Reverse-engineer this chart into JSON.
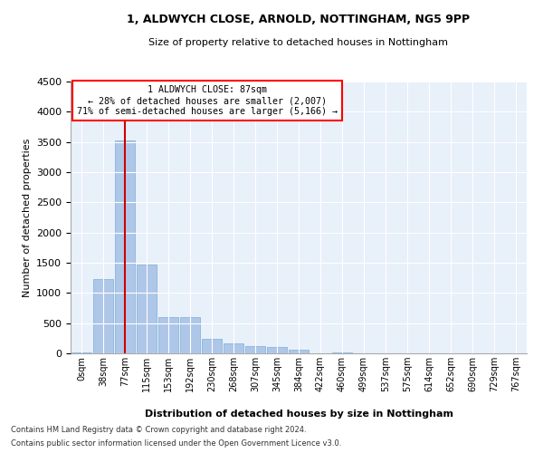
{
  "title1": "1, ALDWYCH CLOSE, ARNOLD, NOTTINGHAM, NG5 9PP",
  "title2": "Size of property relative to detached houses in Nottingham",
  "xlabel": "Distribution of detached houses by size in Nottingham",
  "ylabel": "Number of detached properties",
  "annotation_title": "1 ALDWYCH CLOSE: 87sqm",
  "annotation_line1": "← 28% of detached houses are smaller (2,007)",
  "annotation_line2": "71% of semi-detached houses are larger (5,166) →",
  "footer1": "Contains HM Land Registry data © Crown copyright and database right 2024.",
  "footer2": "Contains public sector information licensed under the Open Government Licence v3.0.",
  "bar_color": "#aec6e8",
  "bar_edge_color": "#7aafd4",
  "highlight_color": "#cc0000",
  "background_color": "#e8f0fa",
  "tick_labels": [
    "0sqm",
    "38sqm",
    "77sqm",
    "115sqm",
    "153sqm",
    "192sqm",
    "230sqm",
    "268sqm",
    "307sqm",
    "345sqm",
    "384sqm",
    "422sqm",
    "460sqm",
    "499sqm",
    "537sqm",
    "575sqm",
    "614sqm",
    "652sqm",
    "690sqm",
    "729sqm",
    "767sqm"
  ],
  "bar_values": [
    10,
    1230,
    3530,
    1470,
    600,
    600,
    240,
    170,
    120,
    100,
    60,
    0,
    10,
    0,
    0,
    0,
    0,
    0,
    0,
    0,
    0
  ],
  "property_bin_index": 2,
  "ylim": [
    0,
    4500
  ],
  "yticks": [
    0,
    500,
    1000,
    1500,
    2000,
    2500,
    3000,
    3500,
    4000,
    4500
  ]
}
